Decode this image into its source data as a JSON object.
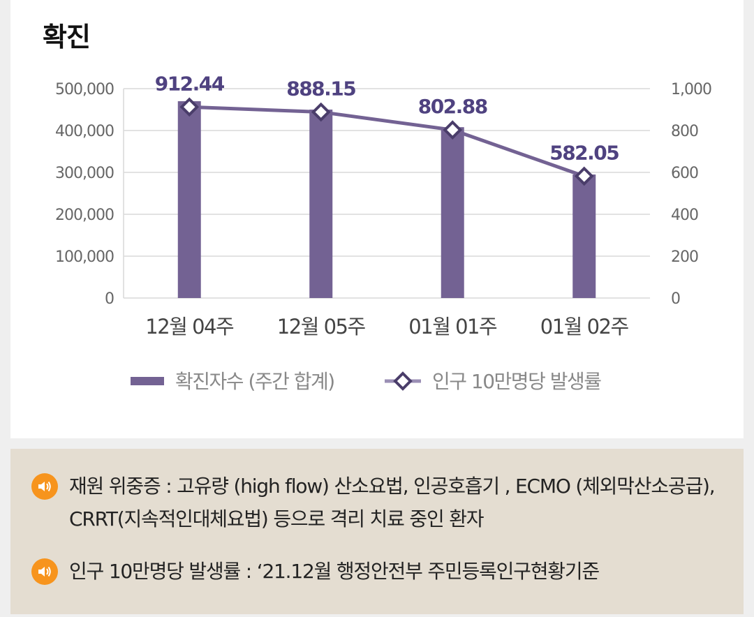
{
  "chart_title": "확진",
  "chart_data": {
    "type": "bar+line",
    "categories": [
      "12월 04주",
      "12월 05주",
      "01월 01주",
      "01월 02주"
    ],
    "series": [
      {
        "name": "확진자수 (주간 합계)",
        "type": "bar",
        "axis": "left",
        "values": [
          470000,
          450000,
          408000,
          295000
        ],
        "color": "#736293"
      },
      {
        "name": "인구 10만명당 발생률",
        "type": "line",
        "axis": "right",
        "values": [
          912.44,
          888.15,
          802.88,
          582.05
        ],
        "labels": [
          "912.44",
          "888.15",
          "802.88",
          "582.05"
        ],
        "color": "#736293"
      }
    ],
    "y_left": {
      "min": 0,
      "max": 500000,
      "ticks": [
        "0",
        "100,000",
        "200,000",
        "300,000",
        "400,000",
        "500,000"
      ]
    },
    "y_right": {
      "min": 0,
      "max": 1000,
      "ticks": [
        "0",
        "200",
        "400",
        "600",
        "800",
        "1,000"
      ]
    },
    "grid": true,
    "legend_position": "bottom"
  },
  "legend": {
    "bar_label": "확진자수 (주간 합계)",
    "line_label": "인구 10만명당 발생률"
  },
  "notes": [
    {
      "icon": "speaker-icon",
      "text": "재원 위중증 : 고유량 (high flow) 산소요법, 인공호흡기 , ECMO (체외막산소공급), CRRT(지속적인대체요법) 등으로 격리 치료 중인 환자"
    },
    {
      "icon": "speaker-icon",
      "text": "인구 10만명당 발생률 : ‘21.12월 행정안전부 주민등록인구현황기준"
    }
  ]
}
